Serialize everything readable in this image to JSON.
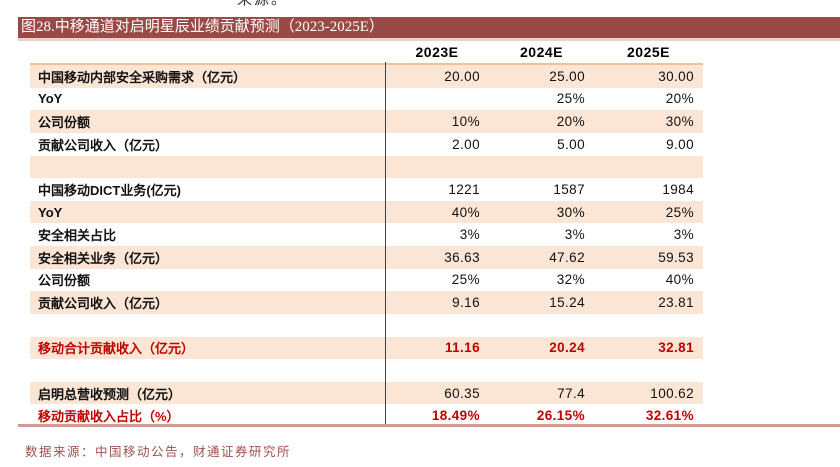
{
  "page": {
    "cropped_top_text": "来源。",
    "figure_title": "图28.中移通道对启明星辰业绩贡献预测（2023-2025E）",
    "source_note": "数据来源：中国移动公告，财通证券研究所"
  },
  "table": {
    "columns": [
      "2023E",
      "2024E",
      "2025E"
    ],
    "rows": [
      {
        "label": "中国移动内部安全采购需求（亿元）",
        "values": [
          "20.00",
          "25.00",
          "30.00"
        ],
        "shade": true,
        "red": false
      },
      {
        "label": "YoY",
        "values": [
          "",
          "25%",
          "20%"
        ],
        "shade": false,
        "red": false
      },
      {
        "label": "公司份额",
        "values": [
          "10%",
          "20%",
          "30%"
        ],
        "shade": true,
        "red": false
      },
      {
        "label": "贡献公司收入（亿元）",
        "values": [
          "2.00",
          "5.00",
          "9.00"
        ],
        "shade": false,
        "red": false
      },
      {
        "label": "",
        "values": [
          "",
          "",
          ""
        ],
        "shade": true,
        "red": false
      },
      {
        "label": "中国移动DICT业务(亿元)",
        "values": [
          "1221",
          "1587",
          "1984"
        ],
        "shade": false,
        "red": false
      },
      {
        "label": "YoY",
        "values": [
          "40%",
          "30%",
          "25%"
        ],
        "shade": true,
        "red": false
      },
      {
        "label": "安全相关占比",
        "values": [
          "3%",
          "3%",
          "3%"
        ],
        "shade": false,
        "red": false
      },
      {
        "label": "安全相关业务（亿元）",
        "values": [
          "36.63",
          "47.62",
          "59.53"
        ],
        "shade": true,
        "red": false
      },
      {
        "label": "公司份额",
        "values": [
          "25%",
          "32%",
          "40%"
        ],
        "shade": false,
        "red": false
      },
      {
        "label": "贡献公司收入（亿元）",
        "values": [
          "9.16",
          "15.24",
          "23.81"
        ],
        "shade": true,
        "red": false
      },
      {
        "label": "",
        "values": [
          "",
          "",
          ""
        ],
        "shade": false,
        "red": false
      },
      {
        "label": "移动合计贡献收入（亿元）",
        "values": [
          "11.16",
          "20.24",
          "32.81"
        ],
        "shade": true,
        "red": true
      },
      {
        "label": "",
        "values": [
          "",
          "",
          ""
        ],
        "shade": false,
        "red": false
      },
      {
        "label": "启明总营收预测（亿元）",
        "values": [
          "60.35",
          "77.4",
          "100.62"
        ],
        "shade": true,
        "red": false
      },
      {
        "label": "移动贡献收入占比（%）",
        "values": [
          "18.49%",
          "26.15%",
          "32.61%"
        ],
        "shade": false,
        "red": true
      }
    ]
  },
  "colors": {
    "title_bar_bg": "#9A4A46",
    "title_text": "#FFFFFF",
    "row_shade": "#FBE5D5",
    "red_text": "#C00000",
    "divider_line": "#404040",
    "table_top_line": "#F2BF9B",
    "bottom_border": "#D99792",
    "source_text": "#A0524C"
  }
}
